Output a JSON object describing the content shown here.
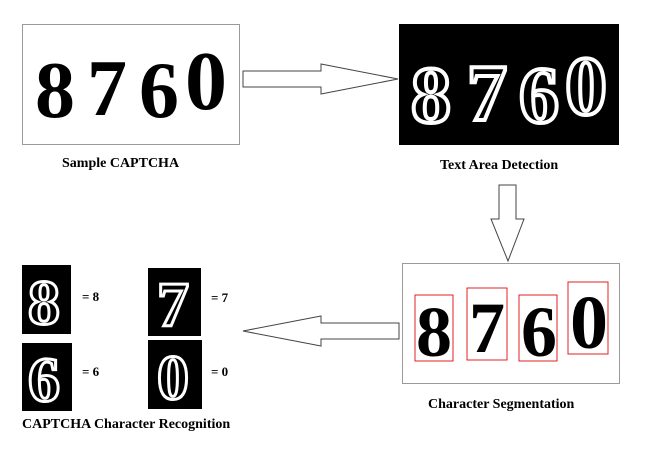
{
  "captcha_text": "8760",
  "stages": {
    "sample": {
      "caption": "Sample CAPTCHA"
    },
    "detection": {
      "caption": "Text Area Detection"
    },
    "segmentation": {
      "caption": "Character Segmentation"
    },
    "recognition": {
      "caption": "CAPTCHA Character Recognition"
    }
  },
  "recognized": [
    {
      "glyph": "8",
      "label": "= 8"
    },
    {
      "glyph": "7",
      "label": "= 7"
    },
    {
      "glyph": "6",
      "label": "= 6"
    },
    {
      "glyph": "0",
      "label": "= 0"
    }
  ],
  "colors": {
    "segment_box": "#e02020",
    "ink": "#000000",
    "paper": "#ffffff"
  }
}
